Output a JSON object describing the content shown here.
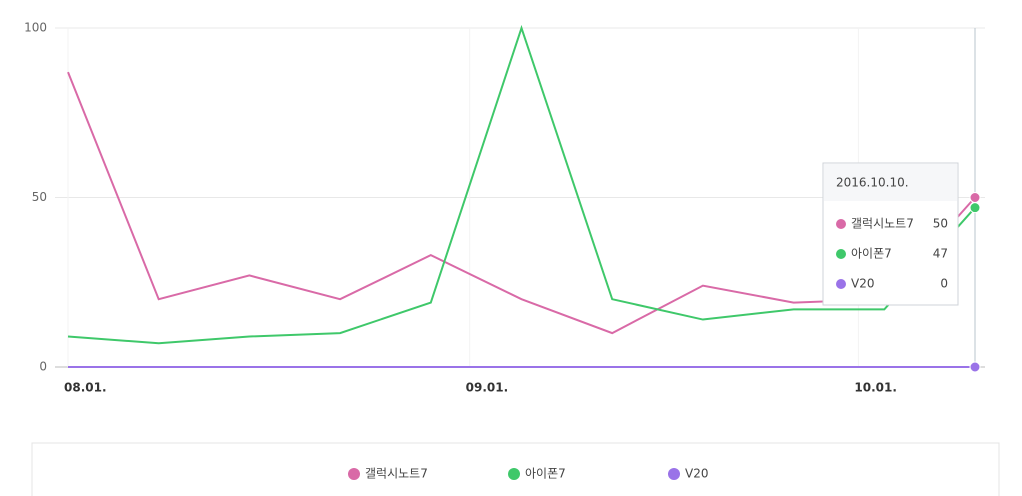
{
  "chart_data": {
    "type": "line",
    "x": [
      "2016-08-01",
      "2016-08-08",
      "2016-08-15",
      "2016-08-22",
      "2016-08-29",
      "2016-09-05",
      "2016-09-12",
      "2016-09-19",
      "2016-09-26",
      "2016-10-03",
      "2016-10-10"
    ],
    "xlim": [
      "2016-08-01",
      "2016-10-10"
    ],
    "xticks": [
      {
        "value": "2016-08-01",
        "label": "08.01."
      },
      {
        "value": "2016-09-01",
        "label": "09.01."
      },
      {
        "value": "2016-10-01",
        "label": "10.01."
      }
    ],
    "ylim": [
      0,
      100
    ],
    "yticks": [
      0,
      50,
      100
    ],
    "grid": true,
    "series": [
      {
        "name": "갤럭시노트7",
        "color": "#d96aa7",
        "values": [
          87,
          20,
          27,
          20,
          33,
          20,
          10,
          24,
          19,
          20,
          50
        ]
      },
      {
        "name": "아이폰7",
        "color": "#3fc86a",
        "values": [
          9,
          7,
          9,
          10,
          19,
          100,
          20,
          14,
          17,
          17,
          47
        ]
      },
      {
        "name": "V20",
        "color": "#9a73e8",
        "values": [
          0,
          0,
          0,
          0,
          0,
          0,
          0,
          0,
          0,
          0,
          0
        ]
      }
    ],
    "tooltip": {
      "title": "2016.10.10."
    }
  }
}
